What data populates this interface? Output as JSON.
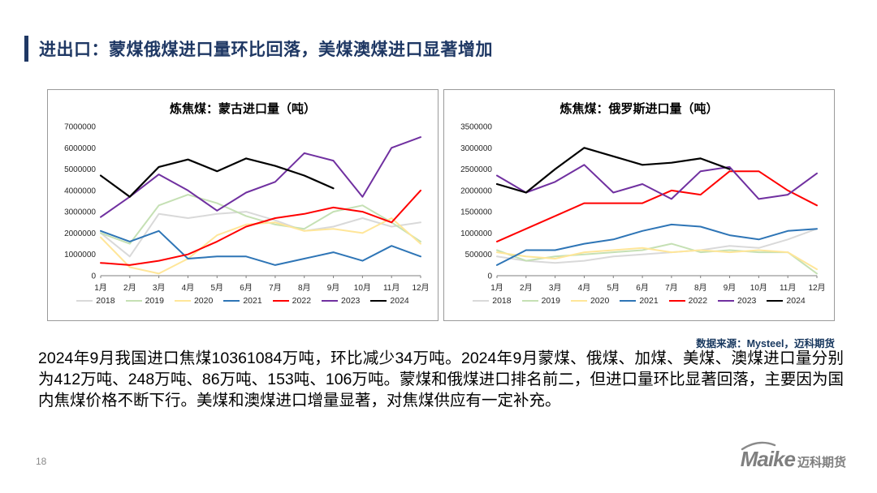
{
  "slide": {
    "title": "进出口：蒙煤俄煤进口量环比回落，美煤澳煤进口显著增加",
    "source_note": "数据来源：Mysteel，迈科期货",
    "body_text": "2024年9月我国进口焦煤10361084万吨，环比减少34万吨。2024年9月蒙煤、俄煤、加煤、美煤、澳煤进口量分别为412万吨、248万吨、86万吨、153吨、106万吨。蒙煤和俄煤进口排名前二，但进口量环比显著回落，主要因为国内焦煤价格不断下行。美煤和澳煤进口增量显著，对焦煤供应有一定补充。",
    "page_number": "18",
    "logo_text": "Maike",
    "logo_suffix": "迈科期货",
    "accent_color": "#1f3864"
  },
  "chart_data": [
    {
      "type": "line",
      "title": "炼焦煤：蒙古进口量（吨）",
      "categories": [
        "1月",
        "2月",
        "3月",
        "4月",
        "5月",
        "6月",
        "7月",
        "8月",
        "9月",
        "10月",
        "11月",
        "12月"
      ],
      "ylim": [
        0,
        7000000
      ],
      "ytick_step": 1000000,
      "grid": false,
      "legend_position": "bottom",
      "series": [
        {
          "name": "2018",
          "color": "#d9d9d9",
          "values": [
            2000000,
            900000,
            2900000,
            2700000,
            2900000,
            3000000,
            2600000,
            2100000,
            2300000,
            2700000,
            2300000,
            2500000
          ]
        },
        {
          "name": "2019",
          "color": "#c5e0b4",
          "values": [
            2000000,
            1500000,
            3300000,
            3800000,
            3400000,
            2800000,
            2400000,
            2200000,
            3000000,
            3300000,
            2500000,
            1600000
          ]
        },
        {
          "name": "2020",
          "color": "#ffe699",
          "values": [
            1800000,
            400000,
            100000,
            800000,
            1900000,
            2400000,
            2500000,
            2100000,
            2200000,
            2000000,
            2700000,
            1500000
          ]
        },
        {
          "name": "2021",
          "color": "#2e75b6",
          "values": [
            2100000,
            1600000,
            2100000,
            800000,
            900000,
            900000,
            500000,
            800000,
            1100000,
            700000,
            1400000,
            900000
          ]
        },
        {
          "name": "2022",
          "color": "#ff0000",
          "values": [
            600000,
            500000,
            700000,
            1000000,
            1600000,
            2300000,
            2700000,
            2900000,
            3200000,
            3000000,
            2500000,
            4000000
          ]
        },
        {
          "name": "2023",
          "color": "#7030a0",
          "values": [
            2750000,
            3700000,
            4750000,
            4000000,
            3050000,
            3900000,
            4400000,
            5750000,
            5400000,
            3700000,
            6000000,
            6500000
          ]
        },
        {
          "name": "2024",
          "color": "#000000",
          "values": [
            4700000,
            3700000,
            5100000,
            5450000,
            4900000,
            5500000,
            5150000,
            4700000,
            4100000,
            null,
            null,
            null
          ]
        }
      ]
    },
    {
      "type": "line",
      "title": "炼焦煤：俄罗斯进口量（吨）",
      "categories": [
        "1月",
        "2月",
        "3月",
        "4月",
        "5月",
        "6月",
        "7月",
        "8月",
        "9月",
        "10月",
        "11月",
        "12月"
      ],
      "ylim": [
        0,
        3500000
      ],
      "ytick_step": 500000,
      "grid": false,
      "legend_position": "bottom",
      "series": [
        {
          "name": "2018",
          "color": "#d9d9d9",
          "values": [
            450000,
            350000,
            300000,
            350000,
            450000,
            500000,
            550000,
            600000,
            700000,
            650000,
            850000,
            1100000
          ]
        },
        {
          "name": "2019",
          "color": "#c5e0b4",
          "values": [
            600000,
            350000,
            450000,
            500000,
            550000,
            600000,
            750000,
            550000,
            600000,
            550000,
            550000,
            50000
          ]
        },
        {
          "name": "2020",
          "color": "#ffe699",
          "values": [
            550000,
            450000,
            400000,
            550000,
            600000,
            650000,
            550000,
            600000,
            550000,
            600000,
            550000,
            150000
          ]
        },
        {
          "name": "2021",
          "color": "#2e75b6",
          "values": [
            250000,
            600000,
            600000,
            750000,
            850000,
            1050000,
            1200000,
            1150000,
            950000,
            850000,
            1050000,
            1100000
          ]
        },
        {
          "name": "2022",
          "color": "#ff0000",
          "values": [
            800000,
            1100000,
            1400000,
            1700000,
            1700000,
            1700000,
            2000000,
            1900000,
            2450000,
            2450000,
            2000000,
            1650000
          ]
        },
        {
          "name": "2023",
          "color": "#7030a0",
          "values": [
            2350000,
            1950000,
            2200000,
            2600000,
            1950000,
            2150000,
            1800000,
            2450000,
            2550000,
            1800000,
            1900000,
            2400000
          ]
        },
        {
          "name": "2024",
          "color": "#000000",
          "values": [
            2150000,
            1950000,
            2500000,
            3000000,
            2800000,
            2600000,
            2650000,
            2750000,
            2500000,
            null,
            null,
            null
          ]
        }
      ]
    }
  ]
}
